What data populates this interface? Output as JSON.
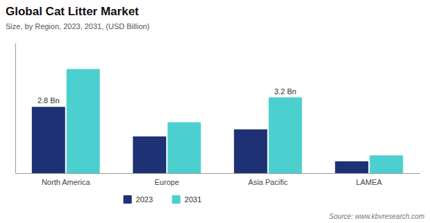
{
  "chart_data": {
    "type": "bar",
    "title": "Global Cat Litter Market",
    "subtitle": "Size, by Region, 2023, 2031, (USD Billion)",
    "categories": [
      "North America",
      "Europe",
      "Asia Pacific",
      "LAMEA"
    ],
    "series": [
      {
        "name": "2023",
        "color": "#1e3175",
        "values": [
          2.8,
          1.55,
          1.85,
          0.5
        ]
      },
      {
        "name": "2031",
        "color": "#4bcfcf",
        "values": [
          4.4,
          2.15,
          3.2,
          0.75
        ]
      }
    ],
    "ylim": [
      0,
      5.5
    ],
    "tick_labels": "x",
    "grid": false,
    "legend": "bottom",
    "annotations": [
      {
        "text": "2.8 Bn",
        "series": "2023",
        "category": "North America"
      },
      {
        "text": "3.2 Bn",
        "series": "2031",
        "category": "Asia Pacific"
      },
      {
        "text": "Source: www.kbvresearch.com"
      }
    ]
  }
}
